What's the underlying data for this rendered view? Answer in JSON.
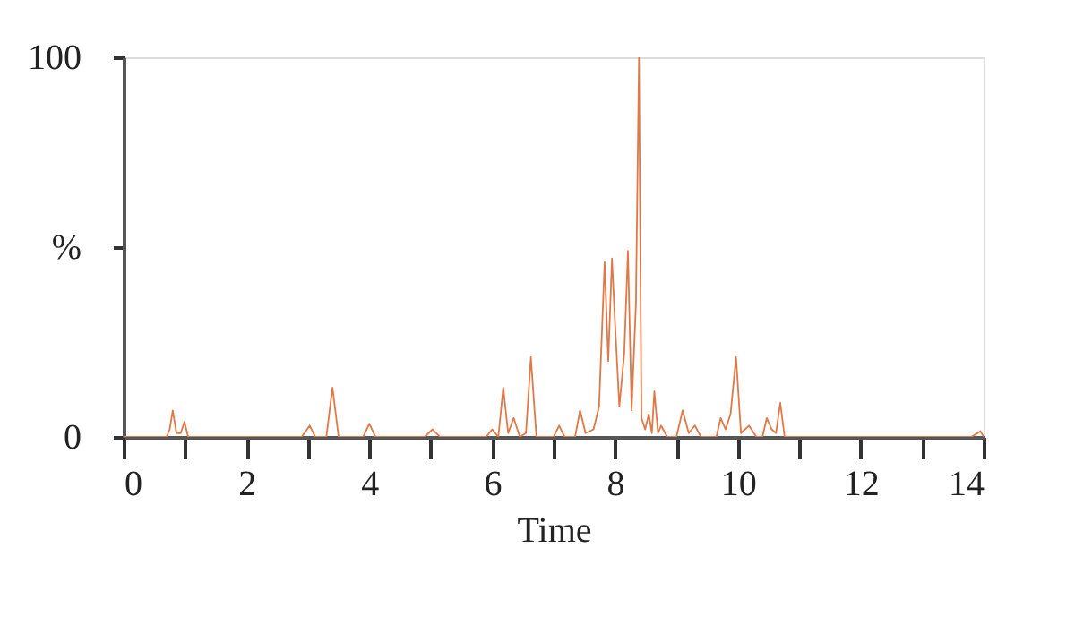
{
  "chart_data": {
    "type": "line",
    "xlabel": "Time",
    "xlim": [
      0,
      14
    ],
    "xticks": [
      0,
      {
        "value": 1,
        "label": null
      },
      2,
      {
        "value": 3,
        "label": null
      },
      4,
      {
        "value": 5,
        "label": null
      },
      6,
      {
        "value": 7,
        "label": null
      },
      8,
      {
        "value": 9,
        "label": null
      },
      10,
      {
        "value": 11,
        "label": null
      },
      12,
      {
        "value": 13,
        "label": null
      },
      14
    ],
    "ylim": [
      0,
      100
    ],
    "yticks": [
      0,
      {
        "value": 50,
        "label": "%"
      },
      100
    ],
    "grid": false,
    "line_style": "solid",
    "marker": "none",
    "series": [
      {
        "color": "#e07848",
        "x": [
          0,
          0.7,
          0.75,
          0.8,
          0.86,
          0.93,
          0.99,
          1.05,
          2.9,
          3.03,
          3.12,
          3.3,
          3.4,
          3.5,
          3.9,
          4.0,
          4.1,
          4.9,
          5.03,
          5.15,
          5.9,
          6.0,
          6.1,
          6.18,
          6.26,
          6.35,
          6.45,
          6.55,
          6.63,
          6.72,
          7.0,
          7.09,
          7.18,
          7.35,
          7.43,
          7.52,
          7.65,
          7.74,
          7.83,
          7.89,
          7.95,
          8.0,
          8.07,
          8.15,
          8.21,
          8.27,
          8.34,
          8.39,
          8.43,
          8.49,
          8.55,
          8.6,
          8.64,
          8.7,
          8.75,
          8.85,
          9.0,
          9.1,
          9.2,
          9.3,
          9.4,
          9.65,
          9.72,
          9.8,
          9.88,
          9.97,
          10.05,
          10.18,
          10.3,
          10.4,
          10.47,
          10.55,
          10.62,
          10.69,
          10.76,
          13.8,
          13.95,
          14
        ],
        "values": [
          0,
          0,
          2,
          7,
          1,
          1,
          4,
          0,
          0,
          3,
          0,
          0,
          13,
          0,
          0,
          3.5,
          0,
          0,
          2,
          0,
          0,
          2,
          0,
          13,
          1,
          5,
          0,
          1,
          21,
          0,
          0,
          3,
          0,
          0,
          7,
          1,
          2,
          8,
          46,
          20,
          47,
          30,
          8,
          22,
          49,
          7,
          35,
          100,
          5,
          2,
          6,
          1,
          12,
          1,
          3,
          0,
          0,
          7,
          1,
          3,
          0,
          0,
          5,
          2,
          6,
          21,
          1,
          3,
          0,
          0,
          5,
          2,
          1,
          9,
          0,
          0,
          1.5,
          0
        ]
      }
    ]
  }
}
